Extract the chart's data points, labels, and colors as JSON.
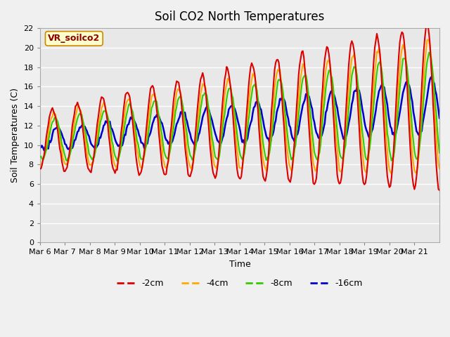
{
  "title": "Soil CO2 North Temperatures",
  "ylabel": "Soil Temperatures (C)",
  "xlabel": "Time",
  "annotation": "VR_soilco2",
  "ylim": [
    0,
    22
  ],
  "fig_bg_color": "#f0f0f0",
  "plot_bg_color": "#e8e8e8",
  "series": {
    "-2cm": {
      "color": "#dd0000",
      "lw": 1.5
    },
    "-4cm": {
      "color": "#ffaa00",
      "lw": 1.5
    },
    "-8cm": {
      "color": "#33cc00",
      "lw": 1.5
    },
    "-16cm": {
      "color": "#0000cc",
      "lw": 1.8
    }
  },
  "x_tick_labels": [
    "Mar 6",
    "Mar 7",
    "Mar 8",
    "Mar 9",
    "Mar 10",
    "Mar 11",
    "Mar 12",
    "Mar 13",
    "Mar 14",
    "Mar 15",
    "Mar 16",
    "Mar 17",
    "Mar 18",
    "Mar 19",
    "Mar 20",
    "Mar 21"
  ],
  "n_days": 16,
  "points_per_day": 24
}
